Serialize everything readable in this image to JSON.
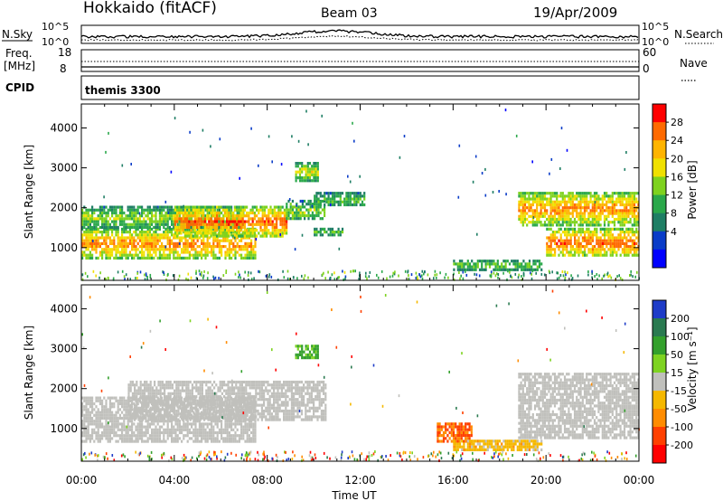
{
  "header": {
    "title": "Hokkaido (fitACF)",
    "beam": "Beam 03",
    "date": "19/Apr/2009"
  },
  "sky_panel": {
    "left_label": "N.Sky",
    "left_ticks": [
      "10^5",
      "10^0"
    ],
    "right_label": "N.Search",
    "right_ticks": [
      "10^5",
      "10^0"
    ]
  },
  "freq_panel": {
    "left_label_1": "Freq.",
    "left_label_2": "[MHz]",
    "left_ticks": [
      "18",
      "8"
    ],
    "right_label": "Nave",
    "right_ticks": [
      "60",
      "0"
    ]
  },
  "cpid_panel": {
    "left_label": "CPID",
    "program": "themis 3300"
  },
  "power_colorbar": {
    "label": "Power [dB]",
    "ticks": [
      "28",
      "24",
      "20",
      "16",
      "12",
      "8",
      "4"
    ],
    "colors": [
      "#ff0000",
      "#ff6a00",
      "#ffb400",
      "#f0e000",
      "#7ed21e",
      "#2aa84a",
      "#1e7e64",
      "#0a3cc8",
      "#0000ff"
    ]
  },
  "velocity_colorbar": {
    "label": "Velocity [m s⁻¹]",
    "ticks": [
      "200",
      "100",
      "50",
      "15",
      "-15",
      "-50",
      "-100",
      "-200"
    ],
    "colors": [
      "#1e3cc8",
      "#2a7a50",
      "#33a02c",
      "#7ed321",
      "#c0c0bc",
      "#f5b800",
      "#ff8c00",
      "#ff4000",
      "#ff0000"
    ]
  },
  "axes": {
    "ylabel": "Slant Range [km]",
    "xlabel": "Time UT",
    "yticks": [
      "4000",
      "3000",
      "2000",
      "1000"
    ],
    "xticks": [
      "00:00",
      "04:00",
      "08:00",
      "12:00",
      "16:00",
      "20:00",
      "00:00"
    ]
  },
  "chart_data": [
    {
      "type": "heatmap",
      "name": "Power [dB]",
      "x_range_hours": [
        0,
        24
      ],
      "y_range_km": [
        180,
        4600
      ],
      "ylim": [
        180,
        4600
      ],
      "clim": [
        0,
        30
      ],
      "regions": [
        {
          "t0": 0.0,
          "t1": 7.5,
          "r0": 750,
          "r1": 1500,
          "power": 22
        },
        {
          "t0": 0.0,
          "t1": 7.0,
          "r0": 1500,
          "r1": 2050,
          "power": 14
        },
        {
          "t0": 4.0,
          "t1": 8.8,
          "r0": 1300,
          "r1": 2050,
          "power": 24
        },
        {
          "t0": 8.8,
          "t1": 10.5,
          "r0": 1700,
          "r1": 2200,
          "power": 14
        },
        {
          "t0": 9.2,
          "t1": 10.2,
          "r0": 2700,
          "r1": 3150,
          "power": 16
        },
        {
          "t0": 10.0,
          "t1": 12.2,
          "r0": 2050,
          "r1": 2400,
          "power": 12
        },
        {
          "t0": 10.0,
          "t1": 11.3,
          "r0": 1350,
          "r1": 1500,
          "power": 12
        },
        {
          "t0": 16.0,
          "t1": 19.8,
          "r0": 480,
          "r1": 700,
          "power": 13
        },
        {
          "t0": 18.8,
          "t1": 24.0,
          "r0": 1600,
          "r1": 2400,
          "power": 22
        },
        {
          "t0": 20.0,
          "t1": 24.0,
          "r0": 800,
          "r1": 1500,
          "power": 24
        }
      ]
    },
    {
      "type": "heatmap",
      "name": "Velocity [m s⁻¹]",
      "x_range_hours": [
        0,
        24
      ],
      "y_range_km": [
        180,
        4600
      ],
      "ylim": [
        180,
        4600
      ],
      "clim": [
        -200,
        200
      ],
      "regions": [
        {
          "t0": 0.0,
          "t1": 7.5,
          "r0": 700,
          "r1": 1800,
          "velocity": 0
        },
        {
          "t0": 2.0,
          "t1": 10.5,
          "r0": 1200,
          "r1": 2200,
          "velocity": 0
        },
        {
          "t0": 9.2,
          "t1": 10.2,
          "r0": 2750,
          "r1": 3100,
          "velocity": 60
        },
        {
          "t0": 15.3,
          "t1": 16.8,
          "r0": 700,
          "r1": 1150,
          "velocity": -100
        },
        {
          "t0": 16.0,
          "t1": 19.8,
          "r0": 500,
          "r1": 720,
          "velocity": -30
        },
        {
          "t0": 18.8,
          "t1": 24.0,
          "r0": 800,
          "r1": 2400,
          "velocity": 0
        }
      ]
    }
  ]
}
